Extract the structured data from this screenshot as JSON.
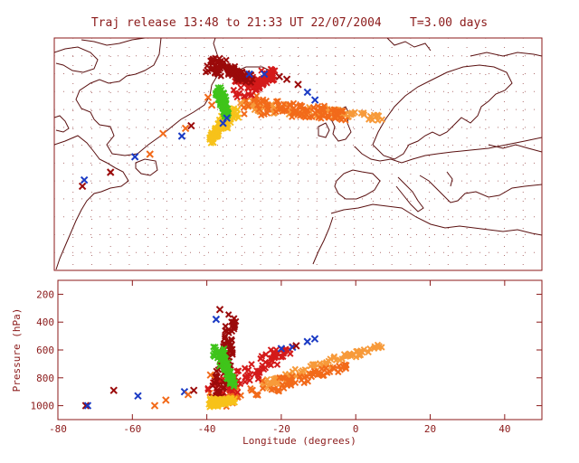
{
  "title": "Traj release 13:48 to 21:33 UT 22/07/2004    T=3.00 days",
  "colors": {
    "axis": "#8b1a1a",
    "coast": "#5a1010",
    "grid": "#b07070",
    "darkred": "#9b0a0a",
    "red": "#d41a1a",
    "orange": "#f26a1a",
    "lightorange": "#f79a3a",
    "yellow": "#f7c21a",
    "green": "#3fc41a",
    "blue": "#1a3ac4"
  },
  "chart_data": [
    {
      "type": "scatter",
      "panel": "map",
      "title": "Traj release 13:48 to 21:33 UT 22/07/2004    T=3.00 days",
      "xlim": [
        -80,
        50
      ],
      "ylim": [
        25,
        70
      ],
      "grid": true,
      "points": [
        {
          "x": -72.5,
          "y": 41.3,
          "c": "darkred"
        },
        {
          "x": -72,
          "y": 42.5,
          "c": "blue"
        },
        {
          "x": -65,
          "y": 44,
          "c": "darkred"
        },
        {
          "x": -58.5,
          "y": 47,
          "c": "blue"
        },
        {
          "x": -54.5,
          "y": 47.5,
          "c": "orange"
        },
        {
          "x": -51,
          "y": 51.5,
          "c": "orange"
        },
        {
          "x": -46,
          "y": 51,
          "c": "blue"
        },
        {
          "x": -45,
          "y": 52.5,
          "c": "orange"
        },
        {
          "x": -43.5,
          "y": 53,
          "c": "darkred"
        },
        {
          "x": -36,
          "y": 66,
          "c": "darkred"
        },
        {
          "x": -28,
          "y": 63,
          "c": "blue"
        },
        {
          "x": -24,
          "y": 63,
          "c": "blue"
        },
        {
          "x": -20,
          "y": 62.5,
          "c": "darkred"
        },
        {
          "x": -18,
          "y": 62,
          "c": "darkred"
        },
        {
          "x": -15,
          "y": 61,
          "c": "darkred"
        },
        {
          "x": -12.5,
          "y": 59.5,
          "c": "blue"
        },
        {
          "x": -10.5,
          "y": 58,
          "c": "blue"
        },
        {
          "x": -34,
          "y": 54.5,
          "c": "blue"
        },
        {
          "x": -35,
          "y": 53.5,
          "c": "blue"
        },
        {
          "x": -39,
          "y": 58.5,
          "c": "orange"
        },
        {
          "x": -38,
          "y": 57,
          "c": "orange"
        }
      ],
      "swarms": [
        {
          "c": "yellow",
          "from": [
            -32,
            56
          ],
          "to": [
            -38.5,
            50
          ]
        },
        {
          "c": "lightorange",
          "from": [
            -30,
            57
          ],
          "to": [
            7,
            54.5
          ]
        },
        {
          "c": "orange",
          "from": [
            -28,
            57
          ],
          "to": [
            -2,
            55
          ]
        },
        {
          "c": "red",
          "from": [
            -30,
            60
          ],
          "to": [
            -22,
            63
          ]
        },
        {
          "c": "darkred",
          "from": [
            -38,
            65
          ],
          "to": [
            -28,
            62
          ]
        },
        {
          "c": "green",
          "from": [
            -36,
            60
          ],
          "to": [
            -34,
            55
          ]
        }
      ]
    },
    {
      "type": "scatter",
      "panel": "profile",
      "xlabel": "Longitude (degrees)",
      "ylabel": "Pressure (hPa)",
      "xlim": [
        -80,
        50
      ],
      "ylim": [
        1100,
        100
      ],
      "xticks": [
        -80,
        -60,
        -40,
        -20,
        0,
        20,
        40
      ],
      "yticks": [
        200,
        400,
        600,
        800,
        1000
      ],
      "points": [
        {
          "x": -72.5,
          "y": 1000,
          "c": "darkred"
        },
        {
          "x": -72,
          "y": 1000,
          "c": "blue"
        },
        {
          "x": -65,
          "y": 890,
          "c": "darkred"
        },
        {
          "x": -58.5,
          "y": 930,
          "c": "blue"
        },
        {
          "x": -54,
          "y": 1000,
          "c": "orange"
        },
        {
          "x": -51,
          "y": 960,
          "c": "orange"
        },
        {
          "x": -46,
          "y": 900,
          "c": "blue"
        },
        {
          "x": -45,
          "y": 920,
          "c": "orange"
        },
        {
          "x": -43.5,
          "y": 890,
          "c": "darkred"
        },
        {
          "x": -37.5,
          "y": 380,
          "c": "blue"
        },
        {
          "x": -36.5,
          "y": 310,
          "c": "darkred"
        },
        {
          "x": -39,
          "y": 780,
          "c": "orange"
        },
        {
          "x": -20,
          "y": 590,
          "c": "blue"
        },
        {
          "x": -17,
          "y": 580,
          "c": "blue"
        },
        {
          "x": -13,
          "y": 540,
          "c": "blue"
        },
        {
          "x": -11,
          "y": 520,
          "c": "blue"
        },
        {
          "x": -16,
          "y": 570,
          "c": "darkred"
        }
      ],
      "swarms": [
        {
          "c": "lightorange",
          "from": [
            -25,
            850
          ],
          "to": [
            7,
            570
          ]
        },
        {
          "c": "orange",
          "from": [
            -38,
            960
          ],
          "to": [
            -2,
            720
          ]
        },
        {
          "c": "red",
          "from": [
            -38,
            900
          ],
          "to": [
            -18,
            600
          ]
        },
        {
          "c": "darkred",
          "from": [
            -37,
            940
          ],
          "to": [
            -33,
            340
          ]
        },
        {
          "c": "green",
          "from": [
            -37,
            600
          ],
          "to": [
            -33,
            850
          ]
        },
        {
          "c": "yellow",
          "from": [
            -39,
            980
          ],
          "to": [
            -33,
            960
          ]
        }
      ]
    }
  ]
}
